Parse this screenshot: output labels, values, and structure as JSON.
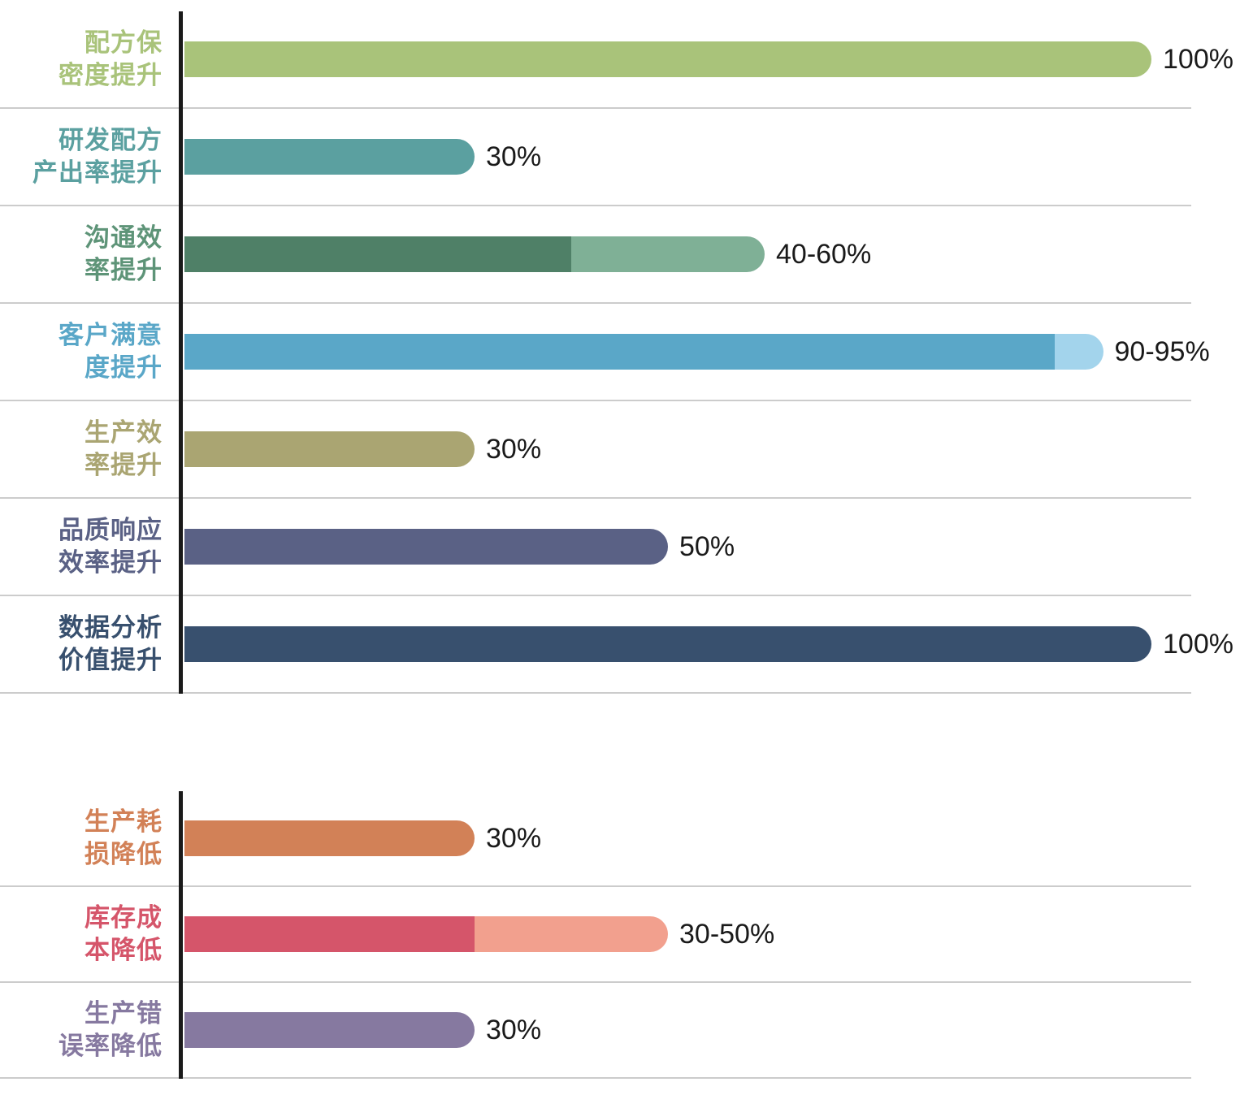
{
  "colors": {
    "background": "#ffffff",
    "axis": "#1a1a1a",
    "separator": "#cccccc",
    "value_text": "#1a1a1a"
  },
  "chart_data": [
    {
      "type": "bar",
      "orientation": "horizontal",
      "unit": "%",
      "xlim": [
        0,
        100
      ],
      "grid": "row-separators-only",
      "value_labels_position": "end-of-bar",
      "rows": [
        {
          "label": "配方保密度提升",
          "label_lines": [
            "配方保",
            "密度提升"
          ],
          "value": "100%",
          "value_min": 100,
          "value_max": 100,
          "seg_main": 100,
          "color": "#a9c37a",
          "label_color": "#a9c37a"
        },
        {
          "label": "研发配方产出率提升",
          "label_lines": [
            "研发配方",
            "产出率提升"
          ],
          "value": "30%",
          "value_min": 30,
          "value_max": 30,
          "seg_main": 30,
          "color": "#5ba0a0",
          "label_color": "#5ba0a0"
        },
        {
          "label": "沟通效率提升",
          "label_lines": [
            "沟通效",
            "率提升"
          ],
          "value": "40-60%",
          "value_min": 40,
          "value_max": 60,
          "seg_main": 40,
          "seg_ext": 20,
          "color": "#4f8067",
          "color_ext": "#7fb096",
          "label_color": "#5e9478"
        },
        {
          "label": "客户满意度提升",
          "label_lines": [
            "客户满意",
            "度提升"
          ],
          "value": "90-95%",
          "value_min": 90,
          "value_max": 95,
          "seg_main": 90,
          "seg_ext": 5,
          "color": "#5aa7c8",
          "color_ext": "#a3d4ec",
          "label_color": "#5aa7c8"
        },
        {
          "label": "生产效率提升",
          "label_lines": [
            "生产效",
            "率提升"
          ],
          "value": "30%",
          "value_min": 30,
          "value_max": 30,
          "seg_main": 30,
          "color": "#aaa572",
          "label_color": "#aaa572"
        },
        {
          "label": "品质响应效率提升",
          "label_lines": [
            "品质响应",
            "效率提升"
          ],
          "value": "50%",
          "value_min": 50,
          "value_max": 50,
          "seg_main": 50,
          "color": "#5a6185",
          "label_color": "#5a6185"
        },
        {
          "label": "数据分析价值提升",
          "label_lines": [
            "数据分析",
            "价值提升"
          ],
          "value": "100%",
          "value_min": 100,
          "value_max": 100,
          "seg_main": 100,
          "color": "#38506e",
          "label_color": "#38506e"
        }
      ]
    },
    {
      "type": "bar",
      "orientation": "horizontal",
      "unit": "%",
      "xlim": [
        0,
        100
      ],
      "grid": "row-separators-only",
      "value_labels_position": "end-of-bar",
      "rows": [
        {
          "label": "生产耗损降低",
          "label_lines": [
            "生产耗",
            "损降低"
          ],
          "value": "30%",
          "value_min": 30,
          "value_max": 30,
          "seg_main": 30,
          "color": "#d28157",
          "label_color": "#d28157"
        },
        {
          "label": "库存成本降低",
          "label_lines": [
            "库存成",
            "本降低"
          ],
          "value": "30-50%",
          "value_min": 30,
          "value_max": 50,
          "seg_main": 30,
          "seg_ext": 20,
          "color": "#d5556a",
          "color_ext": "#f2a08e",
          "label_color": "#d5556a"
        },
        {
          "label": "生产错误率降低",
          "label_lines": [
            "生产错",
            "误率降低"
          ],
          "value": "30%",
          "value_min": 30,
          "value_max": 30,
          "seg_main": 30,
          "color": "#8679a0",
          "label_color": "#8679a0"
        }
      ]
    }
  ]
}
